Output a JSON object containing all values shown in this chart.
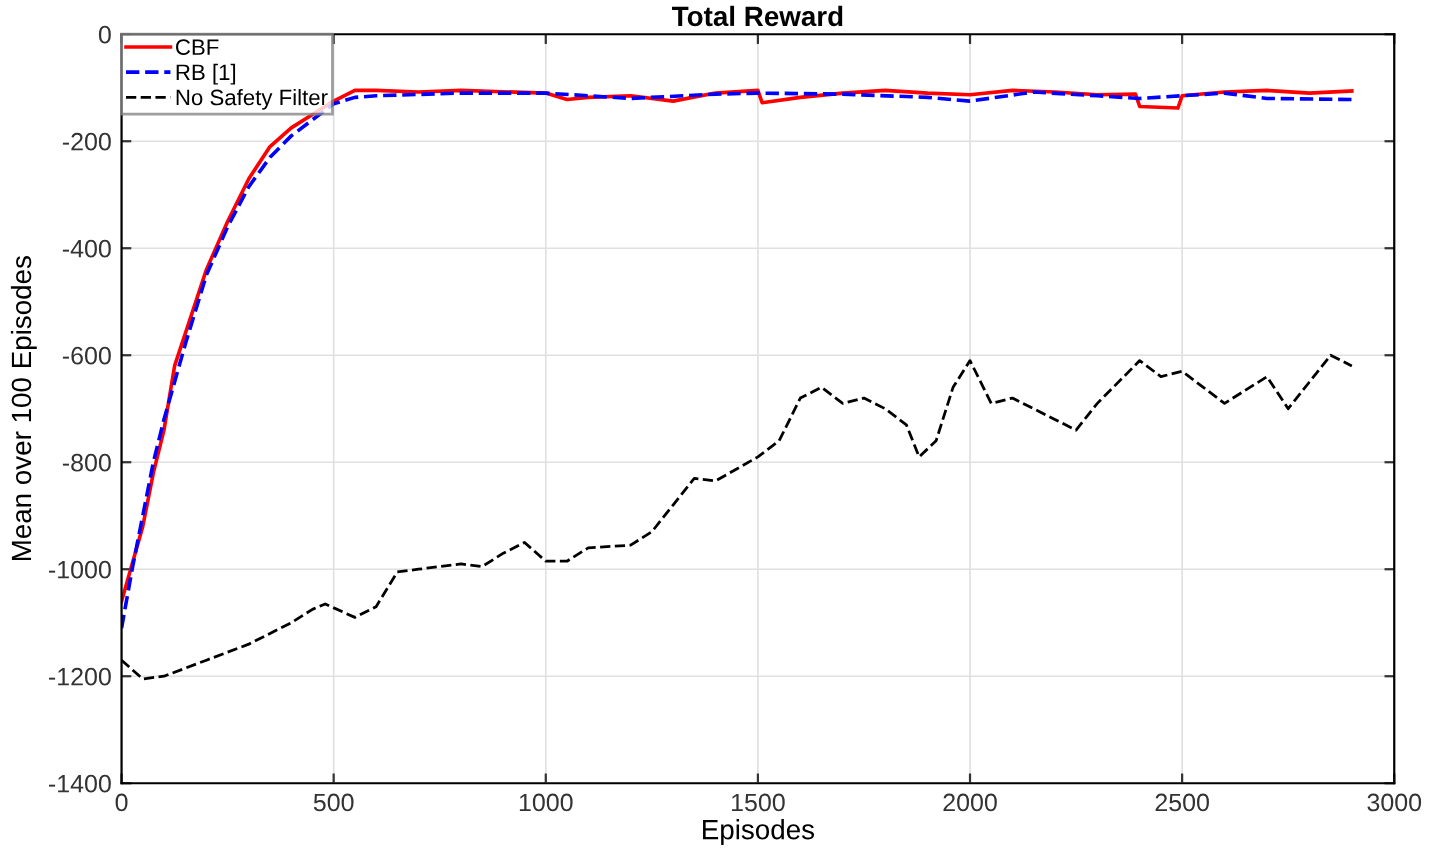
{
  "chart_data": {
    "type": "line",
    "title": "Total Reward",
    "xlabel": "Episodes",
    "ylabel": "Mean over 100 Episodes",
    "xlim": [
      0,
      3000
    ],
    "xticks": [
      0,
      500,
      1000,
      1500,
      2000,
      2500,
      3000
    ],
    "ylim": [
      -1400,
      0
    ],
    "yticks": [
      -1400,
      -1200,
      -1000,
      -800,
      -600,
      -400,
      -200,
      0
    ],
    "grid": true,
    "legend": "top left",
    "marker": "none",
    "series": [
      {
        "name": "CBF",
        "color": "#ff0000",
        "line_style": "solid",
        "x": [
          0,
          25,
          50,
          75,
          100,
          125,
          150,
          200,
          250,
          300,
          350,
          400,
          450,
          500,
          550,
          600,
          700,
          800,
          1000,
          1050,
          1100,
          1200,
          1300,
          1400,
          1500,
          1510,
          1600,
          1700,
          1800,
          1900,
          2000,
          2100,
          2200,
          2300,
          2390,
          2400,
          2490,
          2500,
          2600,
          2700,
          2800,
          2900
        ],
        "values": [
          -1060,
          -990,
          -920,
          -820,
          -740,
          -620,
          -560,
          -440,
          -350,
          -270,
          -210,
          -175,
          -150,
          -125,
          -105,
          -105,
          -108,
          -105,
          -110,
          -122,
          -118,
          -115,
          -125,
          -110,
          -105,
          -128,
          -118,
          -110,
          -105,
          -110,
          -113,
          -105,
          -108,
          -113,
          -112,
          -135,
          -138,
          -115,
          -108,
          -105,
          -110,
          -106
        ]
      },
      {
        "name": "RB [1]",
        "color": "#0000ff",
        "line_style": "dashed",
        "x": [
          0,
          25,
          50,
          75,
          100,
          125,
          150,
          200,
          250,
          300,
          350,
          400,
          450,
          500,
          550,
          600,
          800,
          1000,
          1200,
          1400,
          1500,
          1700,
          1900,
          2000,
          2150,
          2300,
          2400,
          2600,
          2700,
          2900
        ],
        "values": [
          -1110,
          -1000,
          -900,
          -800,
          -720,
          -650,
          -580,
          -450,
          -360,
          -285,
          -230,
          -190,
          -160,
          -130,
          -118,
          -115,
          -110,
          -110,
          -120,
          -112,
          -110,
          -112,
          -118,
          -125,
          -108,
          -115,
          -120,
          -110,
          -120,
          -122
        ]
      },
      {
        "name": "No Safety Filter",
        "color": "#000000",
        "line_style": "dashed",
        "x": [
          0,
          50,
          100,
          150,
          200,
          250,
          300,
          350,
          400,
          450,
          480,
          550,
          600,
          650,
          700,
          800,
          850,
          900,
          950,
          1000,
          1050,
          1100,
          1200,
          1250,
          1300,
          1350,
          1400,
          1500,
          1550,
          1600,
          1650,
          1700,
          1750,
          1800,
          1850,
          1880,
          1920,
          1960,
          2000,
          2050,
          2100,
          2200,
          2250,
          2300,
          2400,
          2450,
          2500,
          2550,
          2600,
          2700,
          2750,
          2800,
          2850,
          2900
        ],
        "values": [
          -1170,
          -1205,
          -1200,
          -1185,
          -1170,
          -1155,
          -1140,
          -1120,
          -1100,
          -1075,
          -1065,
          -1090,
          -1070,
          -1005,
          -1000,
          -990,
          -995,
          -970,
          -950,
          -985,
          -985,
          -960,
          -955,
          -930,
          -880,
          -830,
          -835,
          -790,
          -760,
          -680,
          -660,
          -690,
          -680,
          -700,
          -730,
          -790,
          -760,
          -660,
          -610,
          -690,
          -680,
          -720,
          -740,
          -690,
          -610,
          -640,
          -630,
          -660,
          -690,
          -640,
          -700,
          -650,
          -600,
          -620
        ]
      }
    ]
  }
}
